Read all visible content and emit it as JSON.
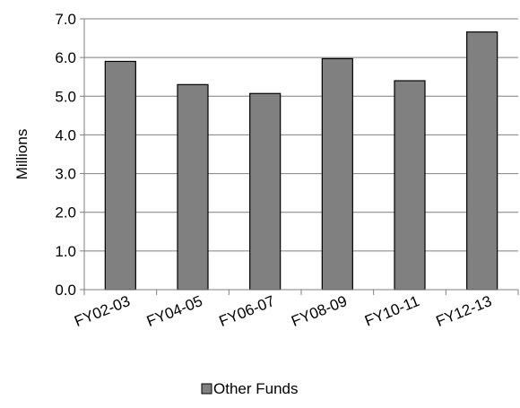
{
  "chart_data": {
    "type": "bar",
    "title": "",
    "xlabel": "",
    "ylabel": "Millions",
    "categories": [
      "FY02-03",
      "FY04-05",
      "FY06-07",
      "FY08-09",
      "FY10-11",
      "FY12-13"
    ],
    "series": [
      {
        "name": "Other Funds",
        "values": [
          5.9,
          5.3,
          5.07,
          5.97,
          5.4,
          6.66
        ]
      }
    ],
    "ylim": [
      0,
      7
    ],
    "yticks": [
      "0.0",
      "1.0",
      "2.0",
      "3.0",
      "4.0",
      "5.0",
      "6.0",
      "7.0"
    ],
    "grid": true,
    "legend_position": "bottom",
    "colors": {
      "bar_fill": "#808080",
      "bar_stroke": "#000000",
      "grid": "#7f7f7f",
      "axis": "#7f7f7f"
    }
  }
}
